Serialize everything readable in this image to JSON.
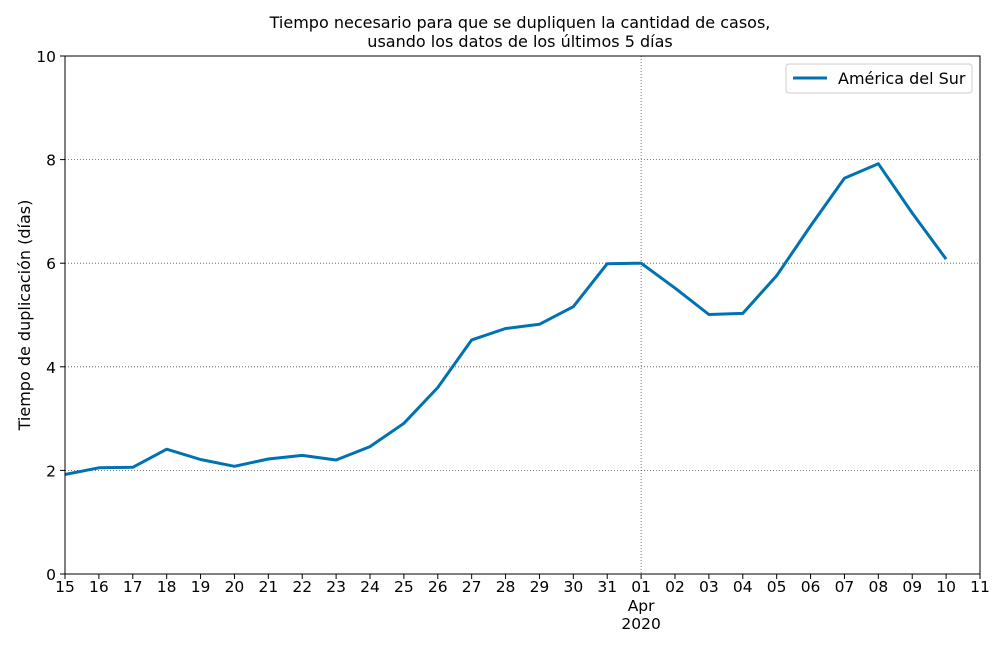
{
  "chart_data": {
    "type": "line",
    "title": [
      "Tiempo necesario para que se dupliquen la cantidad de casos,",
      "usando los datos de los últimos 5 días"
    ],
    "xlabel": "",
    "ylabel": "Tiempo de duplicación (días)",
    "ylim": [
      0,
      10
    ],
    "yticks": [
      "0",
      "2",
      "4",
      "6",
      "8",
      "10"
    ],
    "xlim": [
      "2020-03-15",
      "2020-04-11"
    ],
    "xticks": [
      "15",
      "16",
      "17",
      "18",
      "19",
      "20",
      "21",
      "22",
      "23",
      "24",
      "25",
      "26",
      "27",
      "28",
      "29",
      "30",
      "31",
      "01",
      "02",
      "03",
      "04",
      "05",
      "06",
      "07",
      "08",
      "09",
      "10",
      "11"
    ],
    "xtick_month_label": [
      "Apr",
      "2020"
    ],
    "grid": "dotted",
    "legend_placement": "top-right",
    "series": [
      {
        "name": "América del Sur",
        "color": "#0072b2",
        "x": [
          "2020-03-15",
          "2020-03-16",
          "2020-03-17",
          "2020-03-18",
          "2020-03-19",
          "2020-03-20",
          "2020-03-21",
          "2020-03-22",
          "2020-03-23",
          "2020-03-24",
          "2020-03-25",
          "2020-03-26",
          "2020-03-27",
          "2020-03-28",
          "2020-03-29",
          "2020-03-30",
          "2020-03-31",
          "2020-04-01",
          "2020-04-02",
          "2020-04-03",
          "2020-04-04",
          "2020-04-05",
          "2020-04-06",
          "2020-04-07",
          "2020-04-08",
          "2020-04-09",
          "2020-04-10"
        ],
        "values": [
          1.92,
          2.05,
          2.06,
          2.41,
          2.21,
          2.08,
          2.22,
          2.29,
          2.2,
          2.46,
          2.91,
          3.6,
          4.52,
          4.74,
          4.82,
          5.16,
          5.99,
          6.0,
          5.52,
          5.01,
          5.03,
          5.76,
          6.72,
          7.64,
          7.92,
          6.97,
          6.08
        ]
      }
    ]
  }
}
